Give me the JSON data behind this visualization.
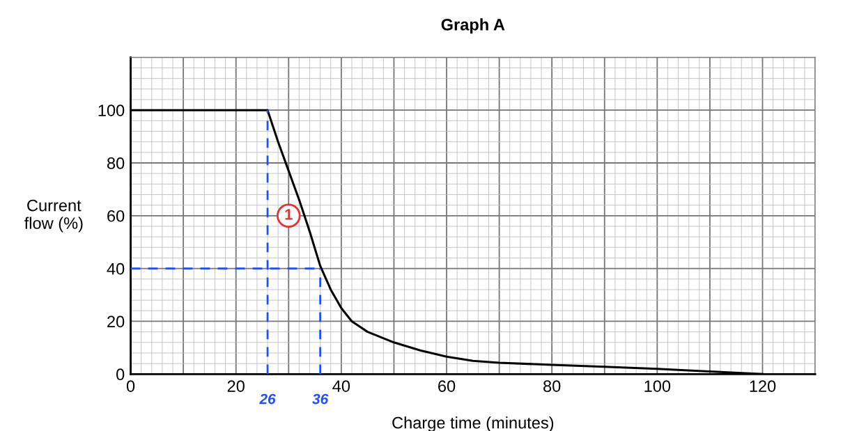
{
  "chart_data": {
    "type": "line",
    "title": "Graph A",
    "xlabel": "Charge time (minutes)",
    "ylabel": "Current\nflow (%)",
    "series": [
      {
        "color": "#000000",
        "x": [
          0,
          26,
          28,
          30,
          32,
          34,
          36,
          38,
          40,
          42,
          45,
          50,
          55,
          60,
          65,
          70,
          80,
          90,
          100,
          110,
          120
        ],
        "values": [
          100,
          100,
          88,
          77,
          66,
          54,
          41,
          32,
          25,
          20,
          16,
          12,
          9,
          6.6,
          5,
          4.3,
          3.5,
          2.8,
          2,
          1,
          0
        ]
      },
      {
        "color": "#1f4fff",
        "line_style": "dashed",
        "x": [
          26,
          26
        ],
        "values": [
          0,
          100
        ]
      },
      {
        "color": "#1f4fff",
        "line_style": "dashed",
        "x": [
          36,
          36
        ],
        "values": [
          0,
          40
        ]
      },
      {
        "color": "#1f4fff",
        "line_style": "dashed",
        "x": [
          0,
          36
        ],
        "values": [
          40,
          40
        ]
      }
    ],
    "annotations": [
      {
        "text": "26",
        "x": 26,
        "y": 0
      },
      {
        "text": "36",
        "x": 36,
        "y": 0
      },
      {
        "text": "1",
        "x": 30,
        "y": 60
      }
    ],
    "xlim": [
      0,
      130
    ],
    "ylim": [
      0,
      120
    ],
    "xticks": [
      0,
      20,
      40,
      60,
      80,
      100,
      120
    ],
    "yticks": [
      0,
      20,
      40,
      60,
      80,
      100
    ],
    "grid": true,
    "legend": false
  }
}
